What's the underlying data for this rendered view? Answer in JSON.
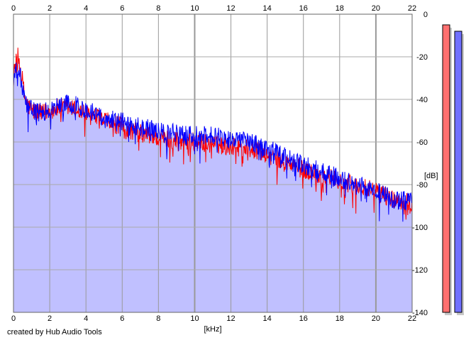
{
  "credit": "created by Hub Audio Tools",
  "chart_data": {
    "type": "line",
    "xlabel": "[kHz]",
    "ylabel": "[dB]",
    "xlim": [
      0,
      22
    ],
    "ylim": [
      -140,
      0
    ],
    "x_ticks": [
      0,
      2,
      4,
      6,
      8,
      10,
      12,
      14,
      16,
      18,
      20,
      22
    ],
    "y_ticks": [
      0,
      -20,
      -40,
      -60,
      -80,
      -100,
      -120,
      -140
    ],
    "grid": true,
    "fill_color": "#c0c0ff",
    "series": [
      {
        "color": "#ff0000",
        "x": [
          0,
          0.1,
          0.25,
          0.4,
          0.6,
          0.8,
          1.0,
          1.5,
          2.0,
          2.5,
          3.0,
          3.5,
          4.0,
          5.0,
          6.0,
          7.0,
          8.0,
          9.0,
          10.0,
          11.0,
          12.0,
          13.0,
          14.0,
          15.0,
          16.0,
          17.0,
          18.0,
          19.0,
          20.0,
          21.0,
          22.0
        ],
        "y": [
          -30,
          -24,
          -20,
          -25,
          -38,
          -43,
          -45,
          -47,
          -45,
          -44,
          -44,
          -45,
          -47,
          -50,
          -53,
          -56,
          -58,
          -59,
          -60,
          -61,
          -62,
          -63,
          -66,
          -70,
          -73,
          -76,
          -78,
          -81,
          -83,
          -87,
          -88
        ]
      },
      {
        "color": "#0000ff",
        "x": [
          0,
          0.1,
          0.25,
          0.4,
          0.6,
          0.8,
          1.0,
          1.5,
          2.0,
          2.5,
          3.0,
          3.5,
          4.0,
          5.0,
          6.0,
          7.0,
          8.0,
          9.0,
          10.0,
          11.0,
          12.0,
          13.0,
          14.0,
          15.0,
          16.0,
          17.0,
          18.0,
          19.0,
          20.0,
          21.0,
          22.0
        ],
        "y": [
          -32,
          -28,
          -25,
          -30,
          -40,
          -44,
          -45,
          -46,
          -45,
          -43,
          -42,
          -43,
          -45,
          -48,
          -50,
          -53,
          -55,
          -56,
          -57,
          -57,
          -58,
          -60,
          -63,
          -67,
          -71,
          -74,
          -77,
          -80,
          -83,
          -87,
          -88
        ]
      }
    ],
    "meters": [
      {
        "color": "#ff7070",
        "value": -5
      },
      {
        "color": "#7070ff",
        "value": -8
      }
    ]
  }
}
